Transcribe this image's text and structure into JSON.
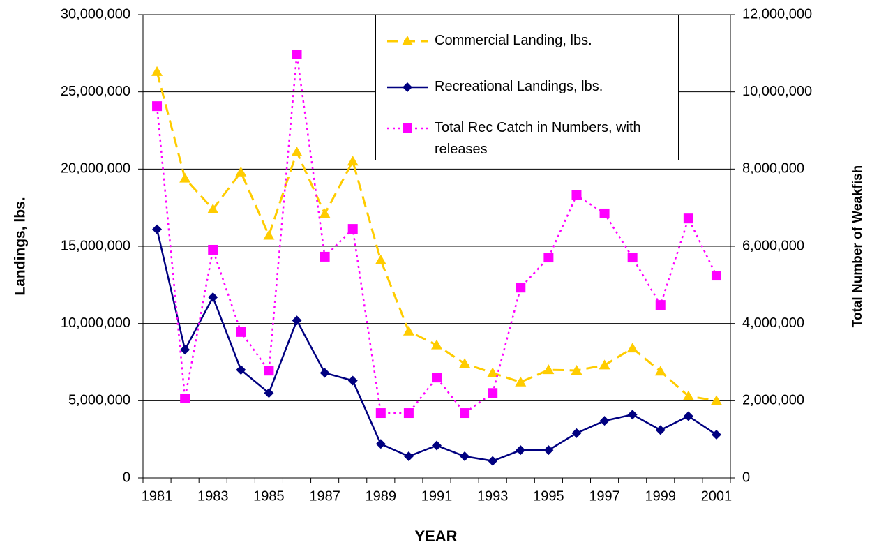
{
  "chart_data": {
    "type": "line",
    "xlabel": "YEAR",
    "ylabel": "Landings, lbs.",
    "y2label": "Total Number of Weakfish",
    "categories": [
      1981,
      null,
      1983,
      null,
      1985,
      null,
      1987,
      null,
      1989,
      null,
      1991,
      null,
      1993,
      null,
      1995,
      null,
      1997,
      null,
      1999,
      null,
      2001
    ],
    "ylim": [
      0,
      30000000
    ],
    "yticks": [
      {
        "value": 0,
        "label": "0"
      },
      {
        "value": 5000000,
        "label": "5,000,000"
      },
      {
        "value": 10000000,
        "label": "10,000,000"
      },
      {
        "value": 15000000,
        "label": "15,000,000"
      },
      {
        "value": 20000000,
        "label": "20,000,000"
      },
      {
        "value": 25000000,
        "label": "25,000,000"
      },
      {
        "value": 30000000,
        "label": "30,000,000"
      }
    ],
    "y2lim": [
      0,
      12000000
    ],
    "y2ticks": [
      {
        "value": 0,
        "label": "0"
      },
      {
        "value": 2000000,
        "label": "2,000,000"
      },
      {
        "value": 4000000,
        "label": "4,000,000"
      },
      {
        "value": 6000000,
        "label": "6,000,000"
      },
      {
        "value": 8000000,
        "label": "8,000,000"
      },
      {
        "value": 10000000,
        "label": "10,000,000"
      },
      {
        "value": 12000000,
        "label": "12,000,000"
      }
    ],
    "grid": true,
    "legend": "top-right",
    "series": [
      {
        "name": "Commercial Landing, lbs.",
        "color": "#ffcc00",
        "marker": "triangle",
        "line_style": "dashed",
        "values": [
          26300000,
          19400000,
          17400000,
          19800000,
          15700000,
          21100000,
          17100000,
          20500000,
          14100000,
          9500000,
          8600000,
          7400000,
          6800000,
          6200000,
          7000000,
          6960000,
          7300000,
          8400000,
          6900000,
          5300000,
          5000000
        ]
      },
      {
        "name": "Recreational Landings, lbs.",
        "color": "#000080",
        "marker": "diamond",
        "line_style": "solid",
        "values": [
          16100000,
          8300000,
          11700000,
          7000000,
          5500000,
          10200000,
          6800000,
          6300000,
          2200000,
          1400000,
          2100000,
          1400000,
          1100000,
          1800000,
          1800000,
          2900000,
          3700000,
          4100000,
          3100000,
          4000000,
          2800000
        ]
      },
      {
        "name": "Total Rec Catch in Numbers, with releases",
        "color": "#ff00ff",
        "marker": "square",
        "line_style": "dotted",
        "axis": "y2",
        "values": [
          9630000,
          2060000,
          5910000,
          3780000,
          2780000,
          10970000,
          5730000,
          6450000,
          1680000,
          1680000,
          2600000,
          1680000,
          2200000,
          4930000,
          5710000,
          7320000,
          6850000,
          5710000,
          4480000,
          6720000,
          5240000
        ]
      }
    ]
  }
}
